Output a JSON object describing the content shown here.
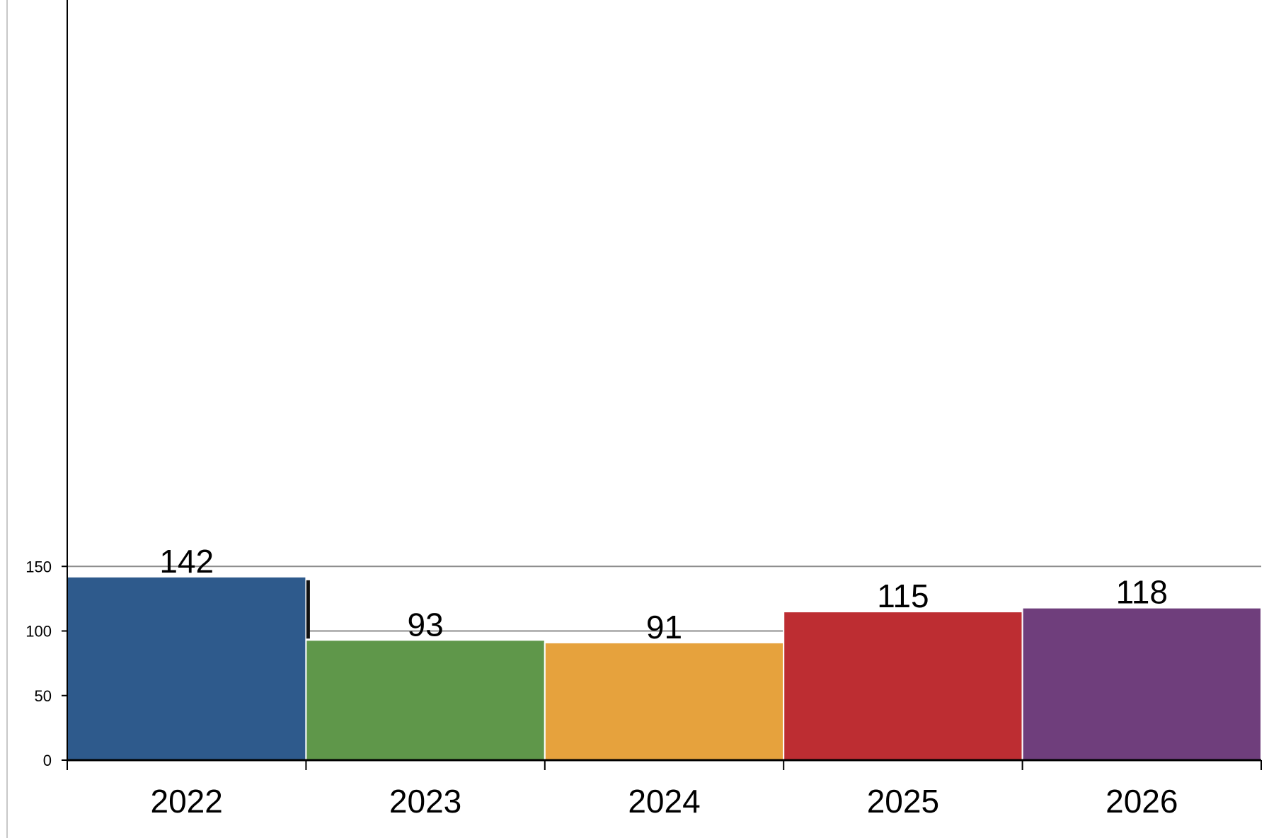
{
  "chart_data": {
    "type": "bar",
    "title": "",
    "xlabel": "",
    "ylabel": "",
    "categories": [
      "2022",
      "2023",
      "2024",
      "2025",
      "2026"
    ],
    "values": [
      142,
      93,
      91,
      115,
      118
    ],
    "data_labels": [
      "142",
      "93",
      "91",
      "115",
      "118"
    ],
    "colors": [
      "#2e5a8c",
      "#5f974a",
      "#e6a23d",
      "#bd2d32",
      "#6f3e7c"
    ],
    "ylim": [
      0,
      200
    ],
    "yticks": [
      0,
      50,
      100,
      150
    ],
    "ytick_labels": [
      "0",
      "50",
      "100",
      "150"
    ],
    "grid": true,
    "legend": "none"
  }
}
